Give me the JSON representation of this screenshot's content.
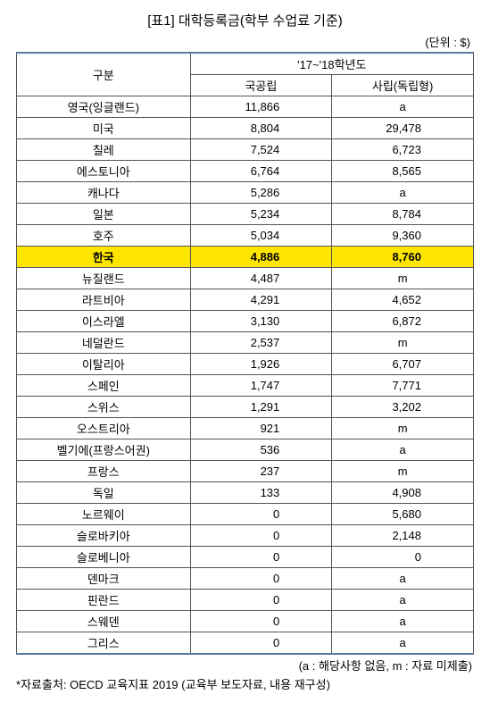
{
  "title": "[표1] 대학등록금(학부 수업료 기준)",
  "unit": "(단위 : $)",
  "header": {
    "category": "구분",
    "year": "'17~'18학년도",
    "public": "국공립",
    "private": "사립(독립형)"
  },
  "rows": [
    {
      "country": "영국(잉글랜드)",
      "public": "11,866",
      "private": "a",
      "pub_num": true,
      "priv_num": false
    },
    {
      "country": "미국",
      "public": "8,804",
      "private": "29,478",
      "pub_num": true,
      "priv_num": true
    },
    {
      "country": "칠레",
      "public": "7,524",
      "private": "6,723",
      "pub_num": true,
      "priv_num": true
    },
    {
      "country": "에스토니아",
      "public": "6,764",
      "private": "8,565",
      "pub_num": true,
      "priv_num": true
    },
    {
      "country": "캐나다",
      "public": "5,286",
      "private": "a",
      "pub_num": true,
      "priv_num": false
    },
    {
      "country": "일본",
      "public": "5,234",
      "private": "8,784",
      "pub_num": true,
      "priv_num": true
    },
    {
      "country": "호주",
      "public": "5,034",
      "private": "9,360",
      "pub_num": true,
      "priv_num": true
    },
    {
      "country": "한국",
      "public": "4,886",
      "private": "8,760",
      "pub_num": true,
      "priv_num": true,
      "highlight": true
    },
    {
      "country": "뉴질랜드",
      "public": "4,487",
      "private": "m",
      "pub_num": true,
      "priv_num": false
    },
    {
      "country": "라트비아",
      "public": "4,291",
      "private": "4,652",
      "pub_num": true,
      "priv_num": true
    },
    {
      "country": "이스라엘",
      "public": "3,130",
      "private": "6,872",
      "pub_num": true,
      "priv_num": true
    },
    {
      "country": "네덜란드",
      "public": "2,537",
      "private": "m",
      "pub_num": true,
      "priv_num": false
    },
    {
      "country": "이탈리아",
      "public": "1,926",
      "private": "6,707",
      "pub_num": true,
      "priv_num": true
    },
    {
      "country": "스페인",
      "public": "1,747",
      "private": "7,771",
      "pub_num": true,
      "priv_num": true
    },
    {
      "country": "스위스",
      "public": "1,291",
      "private": "3,202",
      "pub_num": true,
      "priv_num": true
    },
    {
      "country": "오스트리아",
      "public": "921",
      "private": "m",
      "pub_num": true,
      "priv_num": false
    },
    {
      "country": "벨기에(프랑스어권)",
      "public": "536",
      "private": "a",
      "pub_num": true,
      "priv_num": false
    },
    {
      "country": "프랑스",
      "public": "237",
      "private": "m",
      "pub_num": true,
      "priv_num": false
    },
    {
      "country": "독일",
      "public": "133",
      "private": "4,908",
      "pub_num": true,
      "priv_num": true
    },
    {
      "country": "노르웨이",
      "public": "0",
      "private": "5,680",
      "pub_num": true,
      "priv_num": true
    },
    {
      "country": "슬로바키아",
      "public": "0",
      "private": "2,148",
      "pub_num": true,
      "priv_num": true
    },
    {
      "country": "슬로베니아",
      "public": "0",
      "private": "0",
      "pub_num": true,
      "priv_num": true
    },
    {
      "country": "덴마크",
      "public": "0",
      "private": "a",
      "pub_num": true,
      "priv_num": false
    },
    {
      "country": "핀란드",
      "public": "0",
      "private": "a",
      "pub_num": true,
      "priv_num": false
    },
    {
      "country": "스웨덴",
      "public": "0",
      "private": "a",
      "pub_num": true,
      "priv_num": false
    },
    {
      "country": "그리스",
      "public": "0",
      "private": "a",
      "pub_num": true,
      "priv_num": false
    }
  ],
  "legend": "(a : 해당사항 없음, m : 자료 미제출)",
  "source": "*자료출처: OECD 교육지표 2019 (교육부 보도자료, 내용 재구성)",
  "style": {
    "border_color": "#5b7b9b",
    "cell_border": "#555555",
    "highlight_bg": "#ffe600",
    "background": "#ffffff",
    "text_color": "#000000",
    "font_size_body": 13,
    "font_size_title": 15
  }
}
